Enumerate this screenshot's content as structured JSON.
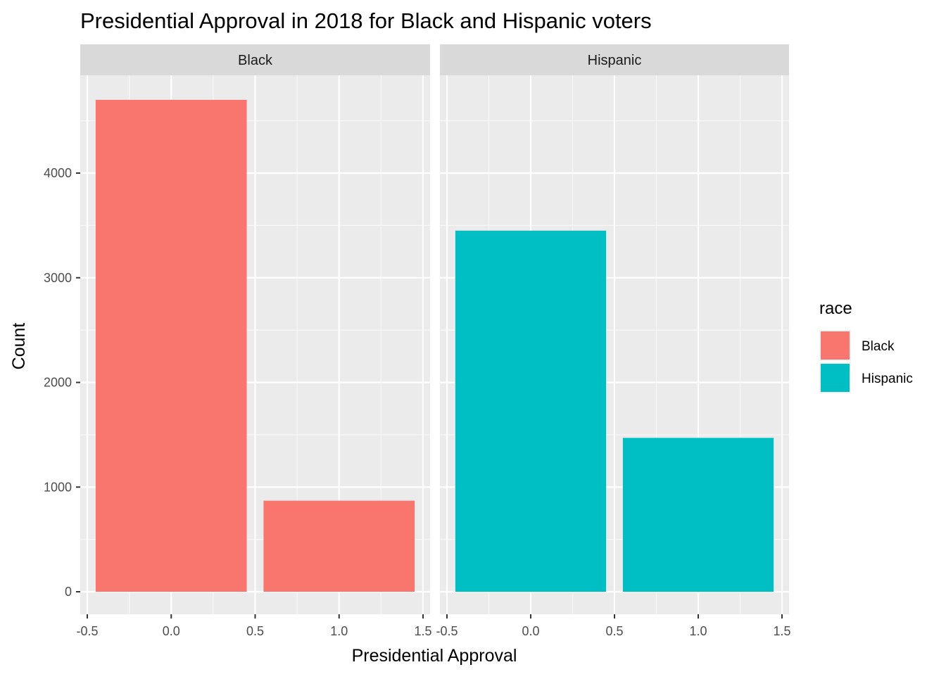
{
  "chart_data": {
    "type": "bar",
    "title": "Presidential Approval in 2018 for Black and Hispanic voters",
    "xlabel": "Presidential Approval",
    "ylabel": "Count",
    "xlim": [
      -0.5,
      1.5
    ],
    "ylim": [
      0,
      4800
    ],
    "x_ticks": [
      -0.5,
      0.0,
      0.5,
      1.0,
      1.5
    ],
    "x_tick_labels": [
      "-0.5",
      "0.0",
      "0.5",
      "1.0",
      "1.5"
    ],
    "y_ticks": [
      0,
      1000,
      2000,
      3000,
      4000
    ],
    "y_tick_labels": [
      "0",
      "1000",
      "2000",
      "3000",
      "4000"
    ],
    "grid": true,
    "legend": {
      "title": "race",
      "position": "right",
      "entries": [
        {
          "label": "Black",
          "color": "#F8766D"
        },
        {
          "label": "Hispanic",
          "color": "#00BFC4"
        }
      ]
    },
    "facets": [
      {
        "label": "Black",
        "color": "#F8766D",
        "bars": [
          {
            "x": 0,
            "value": 4700
          },
          {
            "x": 1,
            "value": 870
          }
        ]
      },
      {
        "label": "Hispanic",
        "color": "#00BFC4",
        "bars": [
          {
            "x": 0,
            "value": 3450
          },
          {
            "x": 1,
            "value": 1470
          }
        ]
      }
    ]
  }
}
